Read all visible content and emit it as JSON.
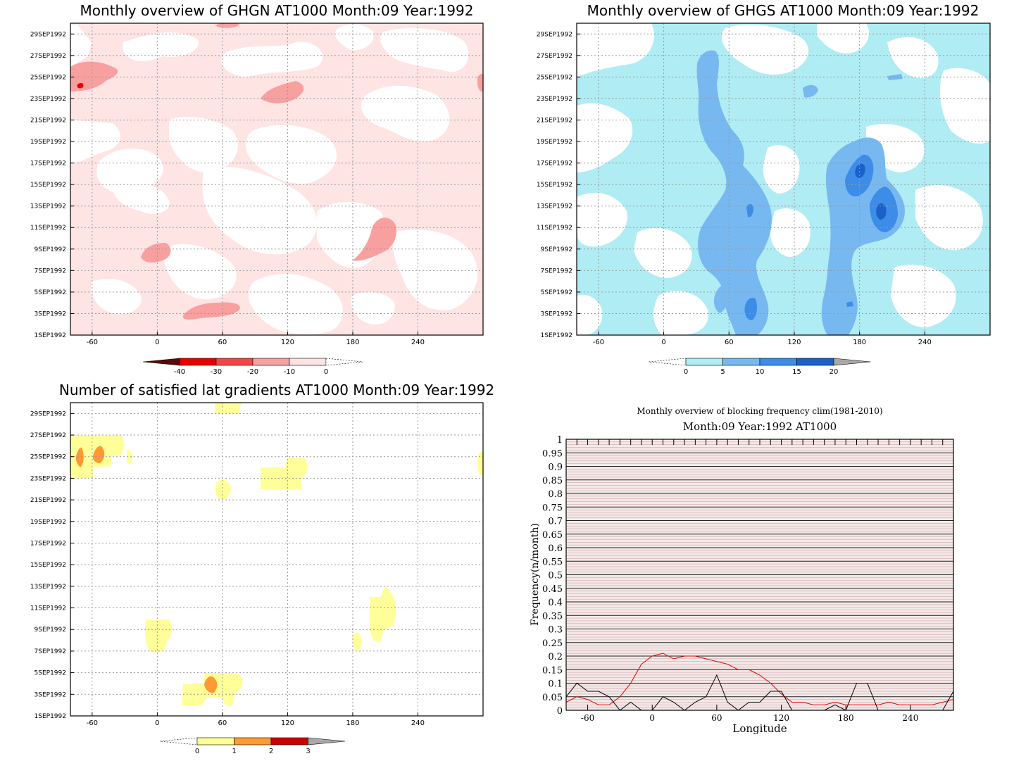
{
  "panels": {
    "ghgn": {
      "title": "Monthly overview of GHGN AT1000 Month:09 Year:1992",
      "xticks": [
        "-60",
        "0",
        "60",
        "120",
        "180",
        "240"
      ],
      "yticks": [
        "1SEP1992",
        "3SEP1992",
        "5SEP1992",
        "7SEP1992",
        "9SEP1992",
        "11SEP1992",
        "13SEP1992",
        "15SEP1992",
        "17SEP1992",
        "19SEP1992",
        "21SEP1992",
        "23SEP1992",
        "25SEP1992",
        "27SEP1992",
        "29SEP1992"
      ],
      "colorbar": {
        "labels": [
          "-40",
          "-30",
          "-20",
          "-10",
          "0"
        ],
        "colors": [
          "#5a0a0a",
          "#e60000",
          "#f04848",
          "#f8a0a0",
          "#ffe4e4"
        ]
      }
    },
    "ghgs": {
      "title": "Monthly overview of GHGS AT1000 Month:09 Year:1992",
      "xticks": [
        "-60",
        "0",
        "60",
        "120",
        "180",
        "240"
      ],
      "yticks": [
        "1SEP1992",
        "3SEP1992",
        "5SEP1992",
        "7SEP1992",
        "9SEP1992",
        "11SEP1992",
        "13SEP1992",
        "15SEP1992",
        "17SEP1992",
        "19SEP1992",
        "21SEP1992",
        "23SEP1992",
        "25SEP1992",
        "27SEP1992",
        "29SEP1992"
      ],
      "colorbar": {
        "labels": [
          "0",
          "5",
          "10",
          "15",
          "20"
        ],
        "colors": [
          "#b0ecf4",
          "#78b8f0",
          "#3c8ce8",
          "#1c60c8",
          "#a8a8a8"
        ]
      }
    },
    "lat": {
      "title": "Number of satisfied lat gradients AT1000 Month:09 Year:1992",
      "xticks": [
        "-60",
        "0",
        "60",
        "120",
        "180",
        "240"
      ],
      "yticks": [
        "1SEP1992",
        "3SEP1992",
        "5SEP1992",
        "7SEP1992",
        "9SEP1992",
        "11SEP1992",
        "13SEP1992",
        "15SEP1992",
        "17SEP1992",
        "19SEP1992",
        "21SEP1992",
        "23SEP1992",
        "25SEP1992",
        "27SEP1992",
        "29SEP1992"
      ],
      "colorbar": {
        "labels": [
          "0",
          "1",
          "2",
          "3"
        ],
        "colors": [
          "#ffff99",
          "#ff9933",
          "#cc0000",
          "#a8a8a8"
        ]
      }
    },
    "freq": {
      "title": "Monthly overview of blocking frequency clim(1981-2010)",
      "subtitle": "Month:09 Year:1992  AT1000",
      "xlabel": "Longitude",
      "ylabel": "Frequency(n/month)",
      "xticks": [
        "-60",
        "0",
        "60",
        "120",
        "180",
        "240"
      ],
      "yticks": [
        "0",
        "0.05",
        "0.1",
        "0.15",
        "0.2",
        "0.25",
        "0.3",
        "0.35",
        "0.4",
        "0.45",
        "0.5",
        "0.55",
        "0.6",
        "0.65",
        "0.7",
        "0.75",
        "0.8",
        "0.85",
        "0.9",
        "0.95",
        "1"
      ]
    }
  },
  "chart_data": [
    {
      "type": "heatmap",
      "title": "Monthly overview of GHGN AT1000 Month:09 Year:1992",
      "x_range": [
        -80,
        300
      ],
      "y_range": [
        "1SEP1992",
        "30SEP1992"
      ],
      "levels": [
        -40,
        -30,
        -20,
        -10,
        0
      ],
      "colors": [
        "#5a0a0a",
        "#e60000",
        "#f04848",
        "#f8a0a0",
        "#ffe4e4"
      ]
    },
    {
      "type": "heatmap",
      "title": "Monthly overview of GHGS AT1000 Month:09 Year:1992",
      "x_range": [
        -80,
        300
      ],
      "y_range": [
        "1SEP1992",
        "30SEP1992"
      ],
      "levels": [
        0,
        5,
        10,
        15,
        20
      ],
      "colors": [
        "#b0ecf4",
        "#78b8f0",
        "#3c8ce8",
        "#1c60c8",
        "#a8a8a8"
      ]
    },
    {
      "type": "heatmap",
      "title": "Number of satisfied lat gradients AT1000 Month:09 Year:1992",
      "x_range": [
        -80,
        300
      ],
      "y_range": [
        "1SEP1992",
        "30SEP1992"
      ],
      "levels": [
        0,
        1,
        2,
        3
      ],
      "colors": [
        "#ffff99",
        "#ff9933",
        "#cc0000",
        "#a8a8a8"
      ]
    },
    {
      "type": "line",
      "title": "Monthly overview of blocking frequency clim(1981-2010)",
      "subtitle": "Month:09 Year:1992  AT1000",
      "xlabel": "Longitude",
      "ylabel": "Frequency(n/month)",
      "xlim": [
        -80,
        280
      ],
      "ylim": [
        0,
        1
      ],
      "series": [
        {
          "color": "#e00000",
          "x": [
            -80,
            -70,
            -60,
            -50,
            -40,
            -30,
            -20,
            -10,
            0,
            10,
            20,
            30,
            40,
            50,
            60,
            70,
            80,
            90,
            100,
            110,
            120,
            130,
            140,
            150,
            160,
            170,
            180,
            190,
            200,
            210,
            220,
            230,
            240,
            250,
            260,
            270,
            280
          ],
          "values": [
            0.03,
            0.05,
            0.04,
            0.02,
            0.02,
            0.05,
            0.1,
            0.17,
            0.2,
            0.21,
            0.19,
            0.2,
            0.2,
            0.19,
            0.18,
            0.17,
            0.15,
            0.15,
            0.13,
            0.1,
            0.06,
            0.03,
            0.03,
            0.02,
            0.02,
            0.03,
            0.02,
            0.02,
            0.02,
            0.02,
            0.03,
            0.02,
            0.02,
            0.02,
            0.02,
            0.03,
            0.04
          ]
        },
        {
          "color": "#000000",
          "x": [
            -80,
            -70,
            -60,
            -50,
            -40,
            -30,
            -20,
            -10,
            0,
            10,
            20,
            30,
            40,
            50,
            60,
            70,
            80,
            90,
            100,
            110,
            120,
            130,
            140,
            150,
            160,
            170,
            180,
            190,
            200,
            210,
            220,
            230,
            240,
            250,
            260,
            270,
            280
          ],
          "values": [
            0.05,
            0.1,
            0.07,
            0.07,
            0.05,
            0.0,
            0.03,
            0.0,
            0.0,
            0.05,
            0.03,
            0.0,
            0.03,
            0.05,
            0.13,
            0.03,
            0.0,
            0.03,
            0.03,
            0.07,
            0.07,
            0.0,
            0.0,
            0.0,
            0.0,
            0.02,
            0.0,
            0.1,
            0.1,
            0.0,
            0.0,
            0.0,
            0.0,
            0.0,
            0.0,
            0.0,
            0.07
          ]
        }
      ]
    }
  ]
}
